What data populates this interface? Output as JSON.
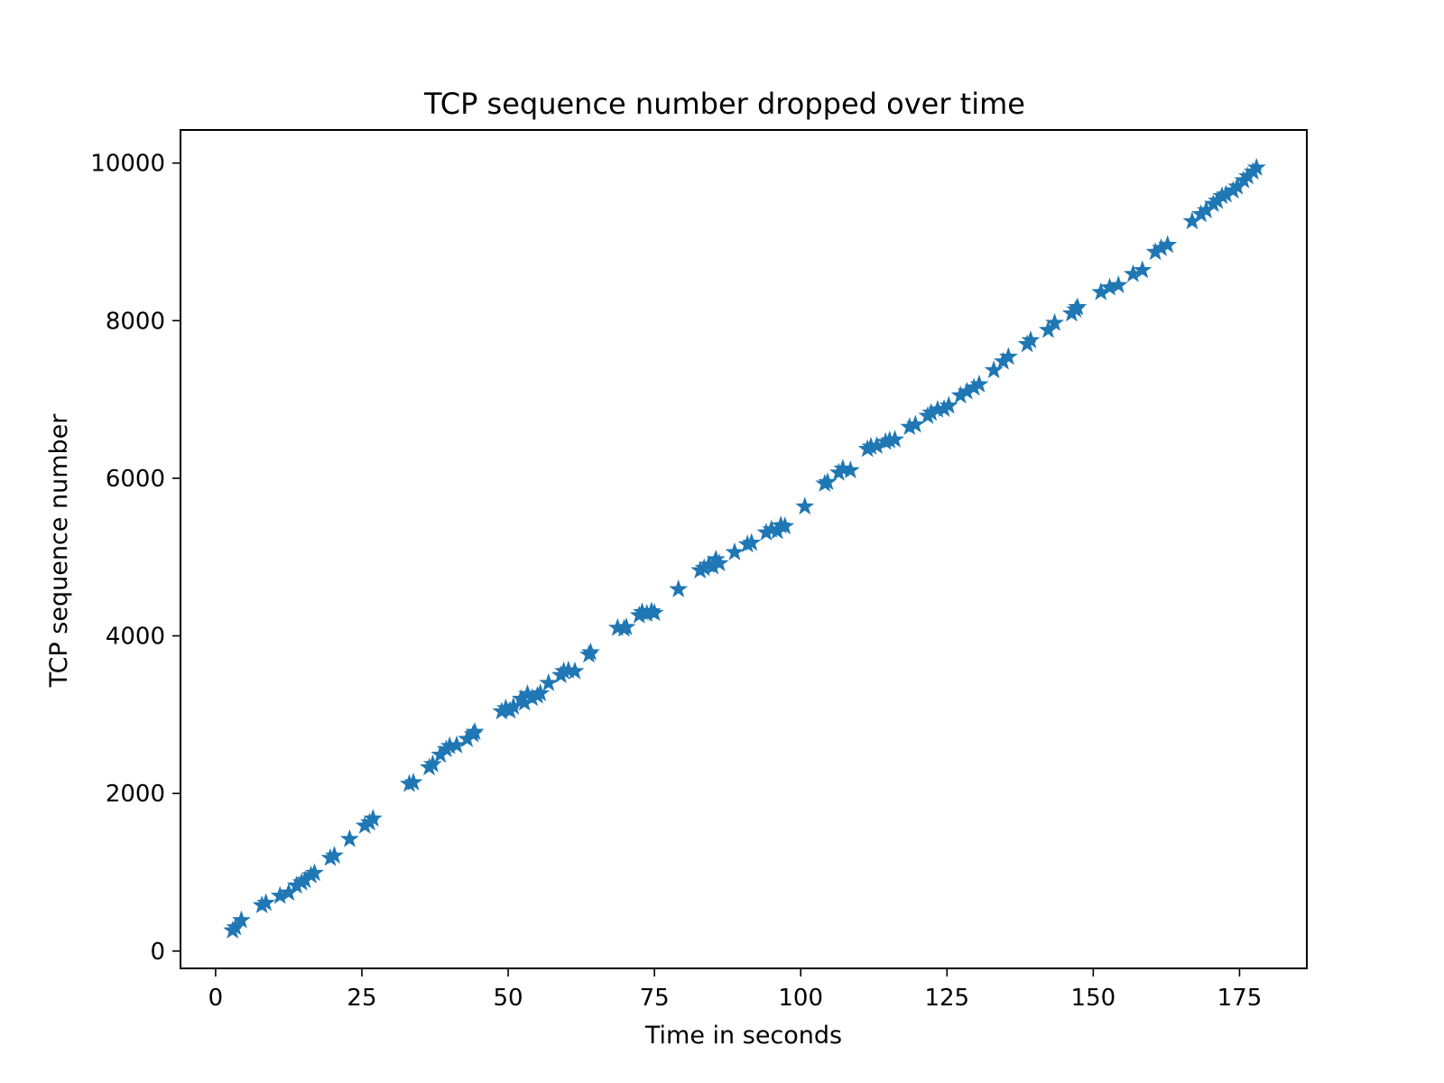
{
  "chart_data": {
    "type": "scatter",
    "title": "TCP sequence number dropped over time",
    "xlabel": "Time in seconds",
    "ylabel": "TCP sequence number",
    "xlim": [
      -6,
      186.5
    ],
    "ylim": [
      -220,
      10420
    ],
    "xticks": [
      0,
      25,
      50,
      75,
      100,
      125,
      150,
      175
    ],
    "yticks": [
      0,
      2000,
      4000,
      6000,
      8000,
      10000
    ],
    "marker": "star",
    "color": "#1f77b4",
    "grid": false,
    "legend": false,
    "series": [
      {
        "points": [
          [
            2.9,
            260
          ],
          [
            3.4,
            300
          ],
          [
            4.4,
            390
          ],
          [
            7.9,
            580
          ],
          [
            8.6,
            610
          ],
          [
            11.0,
            700
          ],
          [
            12.5,
            740
          ],
          [
            13.8,
            830
          ],
          [
            14.7,
            870
          ],
          [
            15.3,
            900
          ],
          [
            16.3,
            960
          ],
          [
            16.9,
            990
          ],
          [
            19.6,
            1180
          ],
          [
            20.3,
            1210
          ],
          [
            22.9,
            1420
          ],
          [
            25.5,
            1590
          ],
          [
            26.3,
            1630
          ],
          [
            26.9,
            1680
          ],
          [
            33.1,
            2120
          ],
          [
            33.8,
            2140
          ],
          [
            36.5,
            2330
          ],
          [
            37.1,
            2370
          ],
          [
            38.4,
            2490
          ],
          [
            39.4,
            2560
          ],
          [
            40.0,
            2600
          ],
          [
            41.2,
            2610
          ],
          [
            43.0,
            2690
          ],
          [
            44.0,
            2750
          ],
          [
            44.3,
            2780
          ],
          [
            48.9,
            3040
          ],
          [
            49.6,
            3080
          ],
          [
            50.3,
            3050
          ],
          [
            50.9,
            3100
          ],
          [
            52.2,
            3200
          ],
          [
            52.8,
            3150
          ],
          [
            53.3,
            3260
          ],
          [
            54.1,
            3210
          ],
          [
            55.0,
            3240
          ],
          [
            55.5,
            3270
          ],
          [
            56.9,
            3400
          ],
          [
            59.0,
            3500
          ],
          [
            59.5,
            3550
          ],
          [
            60.3,
            3560
          ],
          [
            61.4,
            3550
          ],
          [
            63.8,
            3760
          ],
          [
            64.1,
            3790
          ],
          [
            68.7,
            4100
          ],
          [
            69.8,
            4090
          ],
          [
            70.2,
            4110
          ],
          [
            72.4,
            4260
          ],
          [
            72.9,
            4300
          ],
          [
            73.7,
            4280
          ],
          [
            74.5,
            4310
          ],
          [
            75.0,
            4290
          ],
          [
            79.1,
            4590
          ],
          [
            82.8,
            4830
          ],
          [
            83.5,
            4860
          ],
          [
            84.3,
            4900
          ],
          [
            85.0,
            4880
          ],
          [
            85.5,
            4970
          ],
          [
            86.1,
            4920
          ],
          [
            88.7,
            5060
          ],
          [
            90.9,
            5160
          ],
          [
            91.6,
            5180
          ],
          [
            94.1,
            5310
          ],
          [
            95.0,
            5350
          ],
          [
            96.0,
            5330
          ],
          [
            96.6,
            5400
          ],
          [
            97.3,
            5390
          ],
          [
            100.7,
            5640
          ],
          [
            104.1,
            5930
          ],
          [
            104.6,
            5950
          ],
          [
            106.5,
            6070
          ],
          [
            107.2,
            6120
          ],
          [
            108.5,
            6100
          ],
          [
            111.4,
            6370
          ],
          [
            112.0,
            6400
          ],
          [
            113.0,
            6410
          ],
          [
            114.5,
            6460
          ],
          [
            115.2,
            6480
          ],
          [
            116.1,
            6490
          ],
          [
            118.6,
            6650
          ],
          [
            119.6,
            6680
          ],
          [
            121.7,
            6790
          ],
          [
            122.3,
            6830
          ],
          [
            123.4,
            6870
          ],
          [
            124.5,
            6880
          ],
          [
            125.3,
            6920
          ],
          [
            127.3,
            7050
          ],
          [
            128.4,
            7100
          ],
          [
            129.6,
            7150
          ],
          [
            130.5,
            7190
          ],
          [
            133.0,
            7370
          ],
          [
            134.6,
            7480
          ],
          [
            135.5,
            7540
          ],
          [
            138.7,
            7700
          ],
          [
            139.3,
            7750
          ],
          [
            142.3,
            7880
          ],
          [
            143.4,
            7970
          ],
          [
            146.3,
            8090
          ],
          [
            147.0,
            8140
          ],
          [
            147.3,
            8170
          ],
          [
            151.3,
            8360
          ],
          [
            152.8,
            8420
          ],
          [
            154.3,
            8450
          ],
          [
            156.8,
            8590
          ],
          [
            158.4,
            8640
          ],
          [
            160.6,
            8870
          ],
          [
            161.6,
            8920
          ],
          [
            162.7,
            8960
          ],
          [
            166.9,
            9260
          ],
          [
            168.4,
            9350
          ],
          [
            169.3,
            9400
          ],
          [
            170.5,
            9480
          ],
          [
            171.2,
            9520
          ],
          [
            172.0,
            9580
          ],
          [
            172.7,
            9600
          ],
          [
            173.9,
            9650
          ],
          [
            174.6,
            9700
          ],
          [
            175.7,
            9780
          ],
          [
            176.4,
            9830
          ],
          [
            177.3,
            9890
          ],
          [
            177.9,
            9940
          ]
        ]
      }
    ]
  }
}
